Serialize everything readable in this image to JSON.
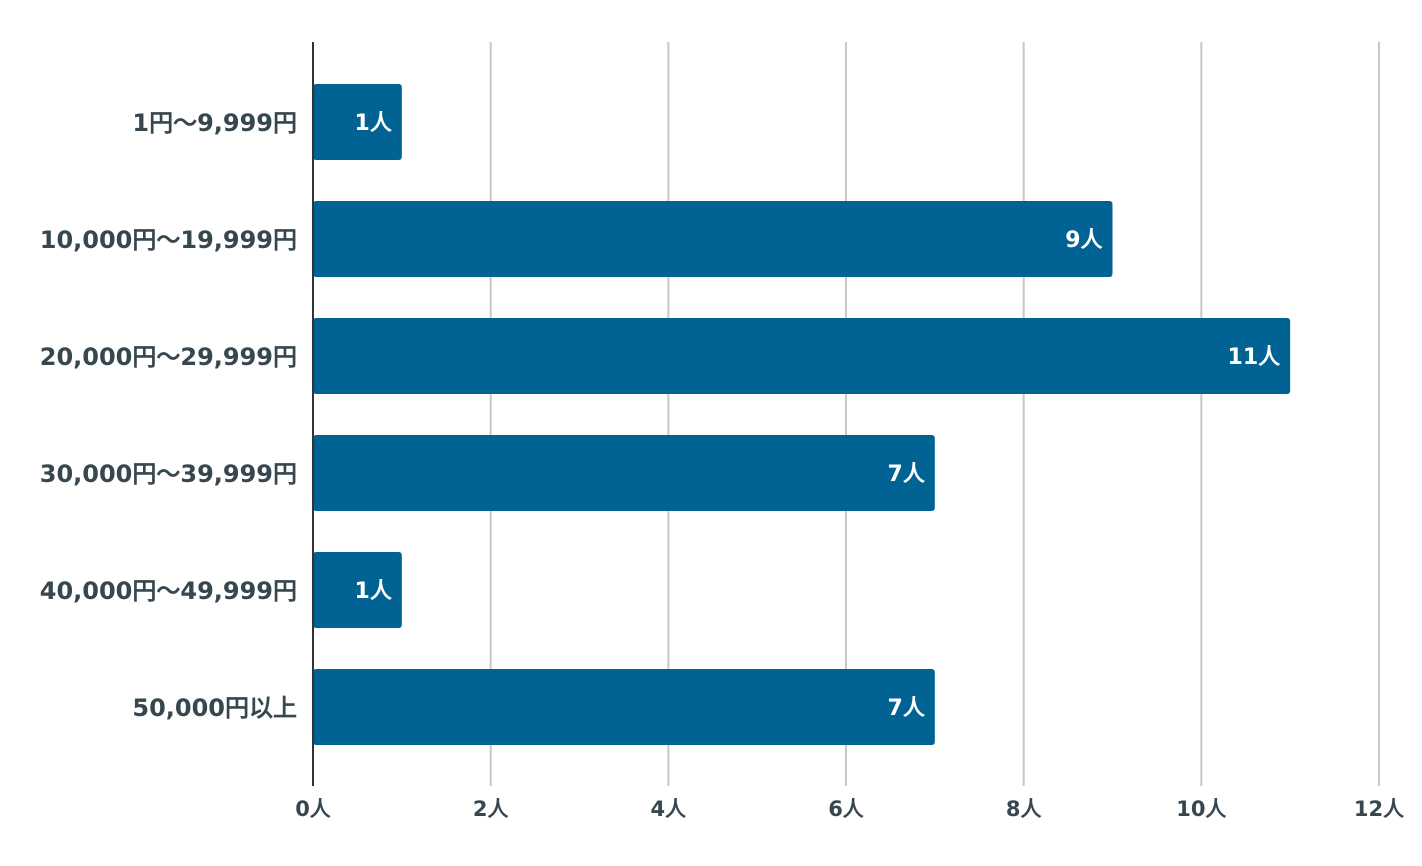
{
  "chart_data": {
    "type": "bar",
    "orientation": "horizontal",
    "categories": [
      "1円〜9,999円",
      "10,000円〜19,999円",
      "20,000円〜29,999円",
      "30,000円〜39,999円",
      "40,000円〜49,999円",
      "50,000円以上"
    ],
    "values": [
      1,
      9,
      11,
      7,
      1,
      7
    ],
    "value_labels": [
      "1人",
      "9人",
      "11人",
      "7人",
      "1人",
      "7人"
    ],
    "title": "",
    "xlabel": "",
    "ylabel": "",
    "xlim": [
      0,
      12
    ],
    "x_ticks": [
      0,
      2,
      4,
      6,
      8,
      10,
      12
    ],
    "x_tick_labels": [
      "0人",
      "2人",
      "4人",
      "6人",
      "8人",
      "10人",
      "12人"
    ],
    "grid": true,
    "legend": "none",
    "colors": {
      "bar": "#006394",
      "bar_label": "#ffffff",
      "text": "#37474f",
      "grid": "#c8c8c8",
      "axis": "#333333"
    }
  }
}
